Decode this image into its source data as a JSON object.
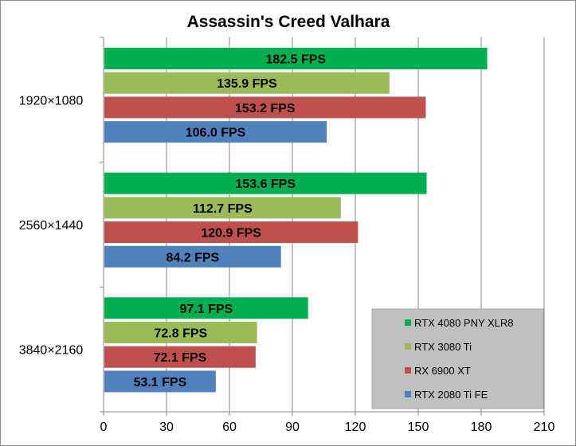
{
  "chart_data": {
    "type": "bar",
    "orientation": "horizontal",
    "title": "Assassin's Creed Valhara",
    "xlabel": "",
    "ylabel": "",
    "categories": [
      "1920×1080",
      "2560×1440",
      "3840×2160"
    ],
    "series": [
      {
        "name": "RTX 4080 PNY XLR8",
        "color": "#00b050",
        "values": [
          182.5,
          153.6,
          97.1
        ],
        "labels": [
          "182.5 FPS",
          "153.6 FPS",
          "97.1 FPS"
        ]
      },
      {
        "name": "RTX 3080 Ti",
        "color": "#9bbb59",
        "values": [
          135.9,
          112.7,
          72.8
        ],
        "labels": [
          "135.9 FPS",
          "112.7 FPS",
          "72.8 FPS"
        ]
      },
      {
        "name": "RX 6900 XT",
        "color": "#c0504d",
        "values": [
          153.2,
          120.9,
          72.1
        ],
        "labels": [
          "153.2 FPS",
          "120.9 FPS",
          "72.1 FPS"
        ]
      },
      {
        "name": "RTX 2080 Ti FE",
        "color": "#4f81bd",
        "values": [
          106.0,
          84.2,
          53.1
        ],
        "labels": [
          "106.0 FPS",
          "84.2 FPS",
          "53.1 FPS"
        ]
      }
    ],
    "xlim": [
      0,
      210
    ],
    "xticks": [
      0,
      30,
      60,
      90,
      120,
      150,
      180,
      210
    ],
    "xtick_labels": [
      "0",
      "30",
      "60",
      "90",
      "120",
      "150",
      "180",
      "210"
    ],
    "grid": "vertical",
    "legend_position": "bottom-right",
    "legend_background": "#c0c0c0"
  }
}
